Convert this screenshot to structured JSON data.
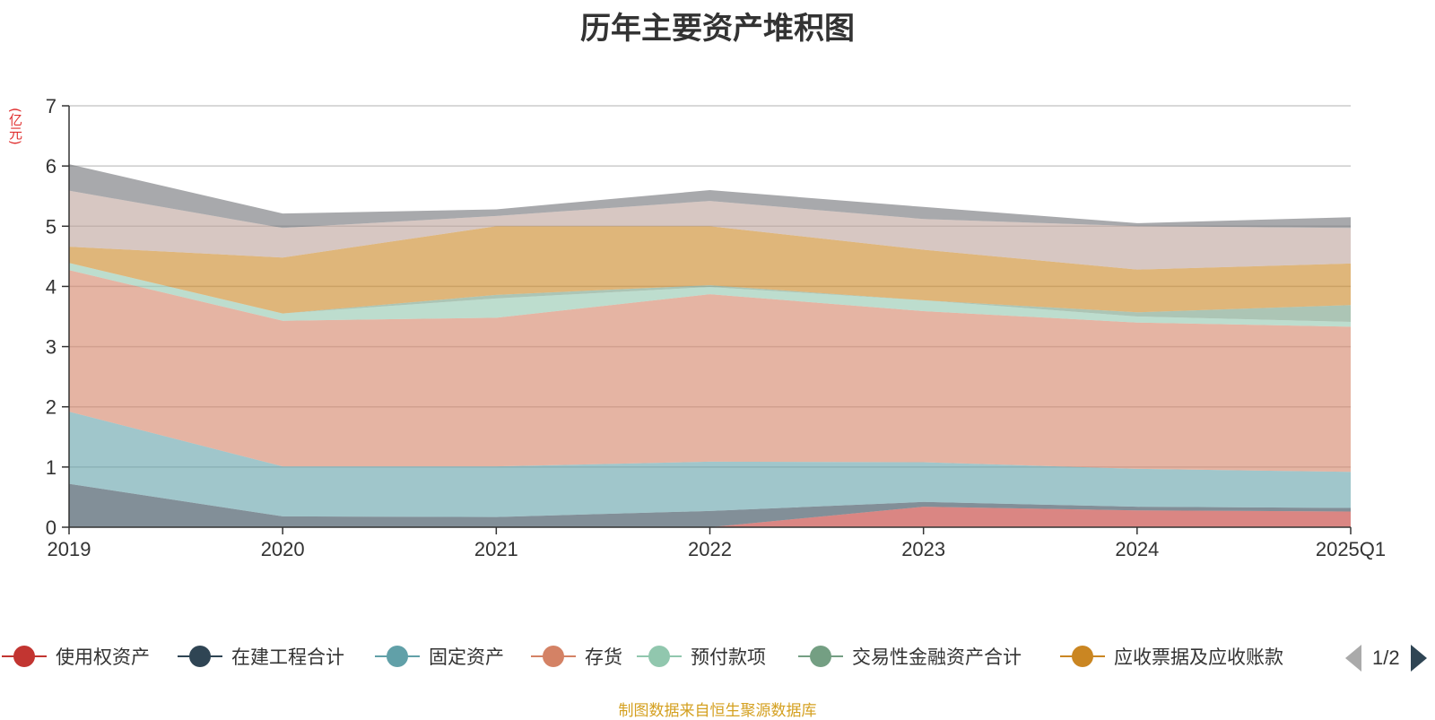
{
  "chart_data": {
    "type": "area",
    "stacked": true,
    "title": "历年主要资产堆积图",
    "y_unit": "(亿元)",
    "categories": [
      "2019",
      "2020",
      "2021",
      "2022",
      "2023",
      "2024",
      "2025Q1"
    ],
    "ylim": [
      0,
      7
    ],
    "yticks": [
      0,
      1,
      2,
      3,
      4,
      5,
      6,
      7
    ],
    "grid": true,
    "legend_position": "bottom",
    "series": [
      {
        "name": "使用权资产",
        "color": "#c23531",
        "values": [
          0,
          0,
          0,
          0,
          0.34,
          0.28,
          0.26
        ]
      },
      {
        "name": "在建工程合计",
        "color": "#2f4554",
        "values": [
          0.72,
          0.18,
          0.17,
          0.27,
          0.08,
          0.06,
          0.06
        ]
      },
      {
        "name": "固定资产",
        "color": "#61a0a8",
        "values": [
          1.2,
          0.83,
          0.84,
          0.82,
          0.66,
          0.63,
          0.6
        ]
      },
      {
        "name": "存货",
        "color": "#d48265",
        "values": [
          2.35,
          2.42,
          2.47,
          2.78,
          2.51,
          2.43,
          2.41
        ]
      },
      {
        "name": "预付款项",
        "color": "#91c7ae",
        "values": [
          0.12,
          0.12,
          0.32,
          0.12,
          0.18,
          0.1,
          0.08
        ]
      },
      {
        "name": "交易性金融资产合计",
        "color": "#749f83",
        "values": [
          0,
          0,
          0.06,
          0.03,
          0,
          0.07,
          0.28
        ]
      },
      {
        "name": "应收票据及应收账款",
        "color": "#ca8622",
        "values": [
          0.27,
          0.93,
          1.14,
          0.98,
          0.84,
          0.71,
          0.69
        ]
      },
      {
        "name": "",
        "color": "#bda29a",
        "values": [
          0.93,
          0.49,
          0.17,
          0.42,
          0.51,
          0.72,
          0.59
        ]
      },
      {
        "name": "",
        "color": "#6e7074",
        "values": [
          0.44,
          0.24,
          0.11,
          0.18,
          0.2,
          0.05,
          0.18
        ]
      }
    ]
  },
  "legend": {
    "page_indicator": "1/2"
  },
  "source_note": "制图数据来自恒生聚源数据库"
}
